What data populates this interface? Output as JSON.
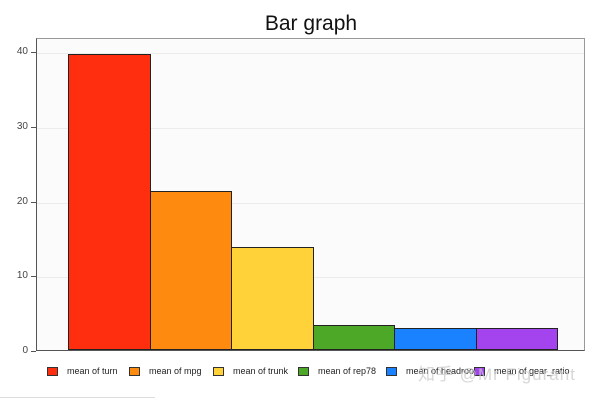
{
  "chart_data": {
    "type": "bar",
    "title": "Bar graph",
    "xlabel": "",
    "ylabel": "",
    "ylim": [
      0,
      41.8
    ],
    "yticks": [
      0,
      10,
      20,
      30,
      40
    ],
    "grid": true,
    "legend_position": "bottom",
    "categories": [
      "mean of turn",
      "mean of mpg",
      "mean of trunk",
      "mean of rep78",
      "mean of headroom",
      "mean of gear_ratio"
    ],
    "values": [
      39.6,
      21.3,
      13.8,
      3.4,
      3.0,
      3.0
    ],
    "colors": [
      "#ff2e0f",
      "#ff8a10",
      "#ffd23a",
      "#4ca826",
      "#1a82ff",
      "#a444ee"
    ]
  },
  "title": "Bar graph",
  "yticks": [
    "0",
    "10",
    "20",
    "30",
    "40"
  ],
  "legend": [
    {
      "label": "mean of turn",
      "color": "#ff2e0f"
    },
    {
      "label": "mean of mpg",
      "color": "#ff8a10"
    },
    {
      "label": "mean of trunk",
      "color": "#ffd23a"
    },
    {
      "label": "mean of rep78",
      "color": "#4ca826"
    },
    {
      "label": "mean of headroom",
      "color": "#1a82ff"
    },
    {
      "label": "mean of gear_ratio",
      "color": "#a444ee"
    }
  ],
  "watermark": "知乎 @Mr Figurant"
}
